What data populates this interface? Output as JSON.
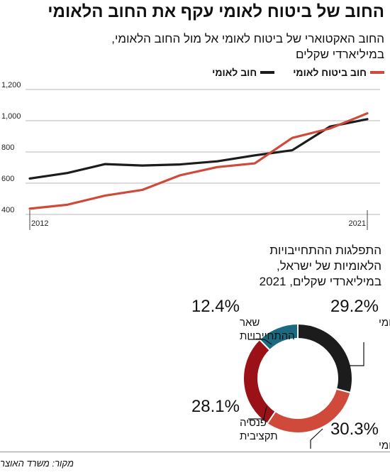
{
  "title": "החוב של ביטוח לאומי עקף את החוב הלאומי",
  "subtitle_lines": [
    "החוב האקטוארי של ביטוח לאומי אל מול החוב הלאומי,",
    "במיליארדי שקלים"
  ],
  "source": "מקור: משרד האוצר",
  "colors": {
    "bl": "#cf4a3a",
    "national": "#1c1c1c",
    "pension": "#9a1117",
    "other": "#1c6a80",
    "gridline": "#bbbbbb"
  },
  "chart_data": [
    {
      "type": "line",
      "x": [
        2012,
        2013,
        2014,
        2015,
        2016,
        2017,
        2018,
        2019,
        2020,
        2021
      ],
      "x_tick_labels": [
        "2012",
        "2021"
      ],
      "ylim": [
        400,
        1200
      ],
      "yticks": [
        400,
        600,
        800,
        1000,
        1200
      ],
      "ytick_labels": [
        "400",
        "600",
        "800",
        "1,000",
        "1,200"
      ],
      "grid": true,
      "legend_position": "top-right",
      "series": [
        {
          "name": "חוב ביטוח לאומי",
          "color": "#cf4a3a",
          "values": [
            437,
            462,
            520,
            557,
            650,
            703,
            727,
            890,
            950,
            1047
          ]
        },
        {
          "name": "חוב לאומי",
          "color": "#1c1c1c",
          "values": [
            630,
            665,
            722,
            713,
            720,
            740,
            778,
            811,
            962,
            1010
          ]
        }
      ]
    },
    {
      "type": "pie",
      "title_lines": [
        "התפלגות ההתחייבויות",
        "הלאומיות של ישראל,",
        "במיליארדי שקלים, 2021"
      ],
      "slices": [
        {
          "label_lines": [
            "חוב לאומי"
          ],
          "value": 29.2,
          "value_label": "29.2%",
          "color": "#1c1c1c"
        },
        {
          "label_lines": [
            "ביטוח לאומי"
          ],
          "value": 30.3,
          "value_label": "30.3%",
          "color": "#cf4a3a"
        },
        {
          "label_lines": [
            "פנסיה",
            "תקציבית"
          ],
          "value": 28.1,
          "value_label": "28.1%",
          "color": "#9a1117"
        },
        {
          "label_lines": [
            "שאר",
            "ההתחייבויות"
          ],
          "value": 12.4,
          "value_label": "12.4%",
          "color": "#1c6a80"
        }
      ]
    }
  ]
}
